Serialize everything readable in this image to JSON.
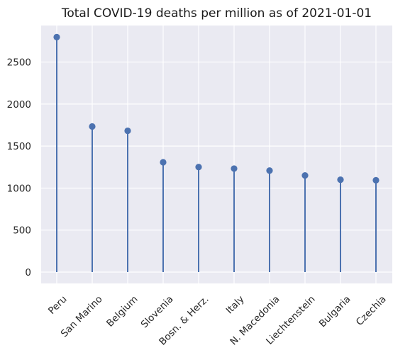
{
  "chart_data": {
    "type": "stem",
    "title": "Total COVID-19 deaths per million as of 2021-01-01",
    "xlabel": "",
    "ylabel": "",
    "categories": [
      "Peru",
      "San Marino",
      "Belgium",
      "Slovenia",
      "Bosn. & Herz.",
      "Italy",
      "N. Macedonia",
      "Liechtenstein",
      "Bulgaria",
      "Czechia"
    ],
    "values": [
      2797,
      1733,
      1682,
      1307,
      1250,
      1232,
      1208,
      1150,
      1100,
      1093
    ],
    "ylim": [
      -135,
      2935
    ],
    "yticks": [
      0,
      500,
      1000,
      1500,
      2000,
      2500
    ],
    "ytick_labels": [
      "0",
      "500",
      "1000",
      "1500",
      "2000",
      "2500"
    ],
    "grid": true,
    "colors": {
      "background": "#eaeaf2",
      "grid": "#ffffff",
      "series": "#4c72b0"
    }
  }
}
